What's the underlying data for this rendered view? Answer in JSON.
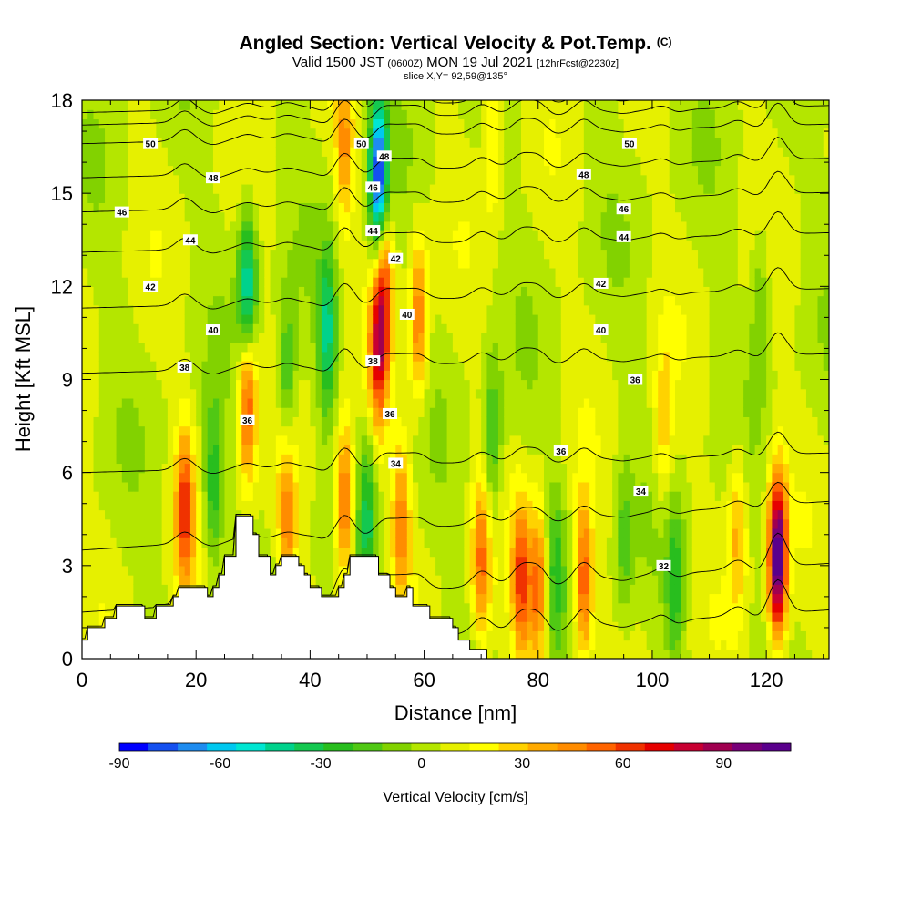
{
  "header": {
    "title": "Angled Section: Vertical Velocity & Pot.Temp.",
    "title_units": "(C)",
    "valid_prefix": "Valid 1500 JST",
    "valid_utc": "(0600Z)",
    "valid_date": "MON 19 Jul 2021",
    "forecast": "[12hrFcst@2230z]",
    "slice": "slice X,Y= 92,59@135°"
  },
  "chart_data": {
    "type": "heatmap",
    "xlabel": "Distance [nm]",
    "ylabel": "Height [Kft MSL]",
    "xlim": [
      0,
      131
    ],
    "ylim": [
      0,
      18
    ],
    "x_ticks": [
      0,
      20,
      40,
      60,
      80,
      100,
      120
    ],
    "y_ticks": [
      0,
      3,
      6,
      9,
      12,
      15,
      18
    ],
    "grid": false,
    "colorbar": {
      "label": "Vertical Velocity [cm/s]",
      "placement": "bottom",
      "ticks": [
        -90,
        -60,
        -30,
        0,
        30,
        60,
        90
      ],
      "range": [
        -90,
        110
      ],
      "colors": [
        "#0000ff",
        "#1450f0",
        "#1e8cf0",
        "#00c8f0",
        "#00e6d2",
        "#00d28c",
        "#14c850",
        "#28be1e",
        "#50c814",
        "#82d200",
        "#b4e600",
        "#e6f000",
        "#ffff00",
        "#ffd200",
        "#ffaa00",
        "#ff8c00",
        "#ff6400",
        "#f03200",
        "#e60000",
        "#c80032",
        "#a00050",
        "#780078",
        "#5a008c"
      ]
    },
    "terrain_kft": [
      [
        0,
        0.6
      ],
      [
        1,
        0.6
      ],
      [
        1,
        1
      ],
      [
        4,
        1
      ],
      [
        4,
        1.3
      ],
      [
        6,
        1.3
      ],
      [
        6,
        1.7
      ],
      [
        11,
        1.7
      ],
      [
        11,
        1.3
      ],
      [
        13,
        1.3
      ],
      [
        13,
        1.7
      ],
      [
        16,
        1.7
      ],
      [
        16,
        2
      ],
      [
        17,
        2
      ],
      [
        17,
        2.3
      ],
      [
        22,
        2.3
      ],
      [
        22,
        2
      ],
      [
        23,
        2
      ],
      [
        23,
        2.3
      ],
      [
        24,
        2.3
      ],
      [
        24,
        2.7
      ],
      [
        25,
        2.7
      ],
      [
        25,
        3.3
      ],
      [
        27,
        3.3
      ],
      [
        27,
        4.6
      ],
      [
        30,
        4.6
      ],
      [
        30,
        4
      ],
      [
        31,
        4
      ],
      [
        31,
        3.3
      ],
      [
        33,
        3.3
      ],
      [
        33,
        2.7
      ],
      [
        34,
        2.7
      ],
      [
        34,
        3
      ],
      [
        35,
        3
      ],
      [
        35,
        3.3
      ],
      [
        38,
        3.3
      ],
      [
        38,
        3
      ],
      [
        39,
        3
      ],
      [
        39,
        2.7
      ],
      [
        40,
        2.7
      ],
      [
        40,
        2.3
      ],
      [
        42,
        2.3
      ],
      [
        42,
        2
      ],
      [
        45,
        2
      ],
      [
        45,
        2.3
      ],
      [
        46,
        2.3
      ],
      [
        46,
        2.7
      ],
      [
        47,
        2.7
      ],
      [
        47,
        3.3
      ],
      [
        52,
        3.3
      ],
      [
        52,
        2.7
      ],
      [
        54,
        2.7
      ],
      [
        54,
        2.3
      ],
      [
        55,
        2.3
      ],
      [
        55,
        2
      ],
      [
        57,
        2
      ],
      [
        57,
        2.3
      ],
      [
        58,
        2.3
      ],
      [
        58,
        1.7
      ],
      [
        61,
        1.7
      ],
      [
        61,
        1.3
      ],
      [
        65,
        1.3
      ],
      [
        65,
        1
      ],
      [
        66,
        1
      ],
      [
        66,
        0.6
      ],
      [
        68,
        0.6
      ],
      [
        68,
        0.3
      ],
      [
        71,
        0.3
      ],
      [
        71,
        0
      ],
      [
        131,
        0
      ]
    ],
    "theta_contours": [
      {
        "label": "32",
        "y0": 0,
        "placements": [
          [
            102,
            3.0
          ]
        ]
      },
      {
        "label": "34",
        "y0": 1.5,
        "placements": [
          [
            55,
            6.3
          ],
          [
            98,
            5.4
          ]
        ]
      },
      {
        "label": "36",
        "y0": 3.5,
        "placements": [
          [
            29,
            7.7
          ],
          [
            54,
            7.9
          ],
          [
            84,
            6.7
          ],
          [
            97,
            9.0
          ]
        ]
      },
      {
        "label": "38",
        "y0": 6.0,
        "placements": [
          [
            18,
            9.4
          ],
          [
            51,
            9.6
          ]
        ]
      },
      {
        "label": "40",
        "y0": 9.2,
        "placements": [
          [
            23,
            10.6
          ],
          [
            57,
            11.1
          ],
          [
            91,
            10.6
          ]
        ]
      },
      {
        "label": "42",
        "y0": 11.3,
        "placements": [
          [
            12,
            12.0
          ],
          [
            55,
            12.9
          ],
          [
            91,
            12.1
          ]
        ]
      },
      {
        "label": "44",
        "y0": 13.1,
        "placements": [
          [
            19,
            13.5
          ],
          [
            51,
            13.8
          ],
          [
            95,
            13.6
          ]
        ]
      },
      {
        "label": "46",
        "y0": 14.4,
        "placements": [
          [
            7,
            14.4
          ],
          [
            51,
            15.2
          ],
          [
            95,
            14.5
          ]
        ]
      },
      {
        "label": "48",
        "y0": 15.5,
        "placements": [
          [
            23,
            15.5
          ],
          [
            53,
            16.2
          ],
          [
            88,
            15.6
          ]
        ]
      },
      {
        "label": "50",
        "y0": 16.6,
        "placements": [
          [
            12,
            16.6
          ],
          [
            49,
            16.6
          ],
          [
            96,
            16.6
          ]
        ]
      },
      {
        "label": "",
        "y0": 17.2,
        "placements": []
      },
      {
        "label": "",
        "y0": 17.6,
        "placements": []
      }
    ],
    "updrafts": [
      {
        "x": 18,
        "z": 4.8,
        "w": 55
      },
      {
        "x": 29,
        "z": 8.5,
        "w": 60
      },
      {
        "x": 36,
        "z": 4.6,
        "w": 40
      },
      {
        "x": 46,
        "z": 5.0,
        "w": 55
      },
      {
        "x": 52,
        "z": 10,
        "w": 60
      },
      {
        "x": 53,
        "z": 12.2,
        "w": 45
      },
      {
        "x": 56,
        "z": 4.5,
        "w": 40
      },
      {
        "x": 59,
        "z": 11,
        "w": 45
      },
      {
        "x": 70,
        "z": 3.2,
        "w": 45
      },
      {
        "x": 77,
        "z": 2.5,
        "w": 55
      },
      {
        "x": 80,
        "z": 2.3,
        "w": 50
      },
      {
        "x": 88,
        "z": 2.5,
        "w": 55
      },
      {
        "x": 122,
        "z": 3.3,
        "w": 110
      },
      {
        "x": 115,
        "z": 4.2,
        "w": 30
      },
      {
        "x": 102,
        "z": 7.5,
        "w": 25
      },
      {
        "x": 46,
        "z": 16.5,
        "w": 35
      },
      {
        "x": 72,
        "z": 17.2,
        "w": 25
      }
    ],
    "downdrafts": [
      {
        "x": 29,
        "z": 11.8,
        "w": -60
      },
      {
        "x": 43,
        "z": 10.5,
        "w": -45
      },
      {
        "x": 52,
        "z": 15.5,
        "w": -90
      },
      {
        "x": 23,
        "z": 5.5,
        "w": -35
      },
      {
        "x": 50,
        "z": 4.5,
        "w": -35
      },
      {
        "x": 72,
        "z": 7,
        "w": -30
      },
      {
        "x": 104,
        "z": 2.5,
        "w": -30
      },
      {
        "x": 95,
        "z": 3.8,
        "w": -20
      },
      {
        "x": 83,
        "z": 3,
        "w": -25
      },
      {
        "x": 36,
        "z": 9,
        "w": -30
      },
      {
        "x": 119,
        "z": 11.5,
        "w": -20
      }
    ]
  }
}
